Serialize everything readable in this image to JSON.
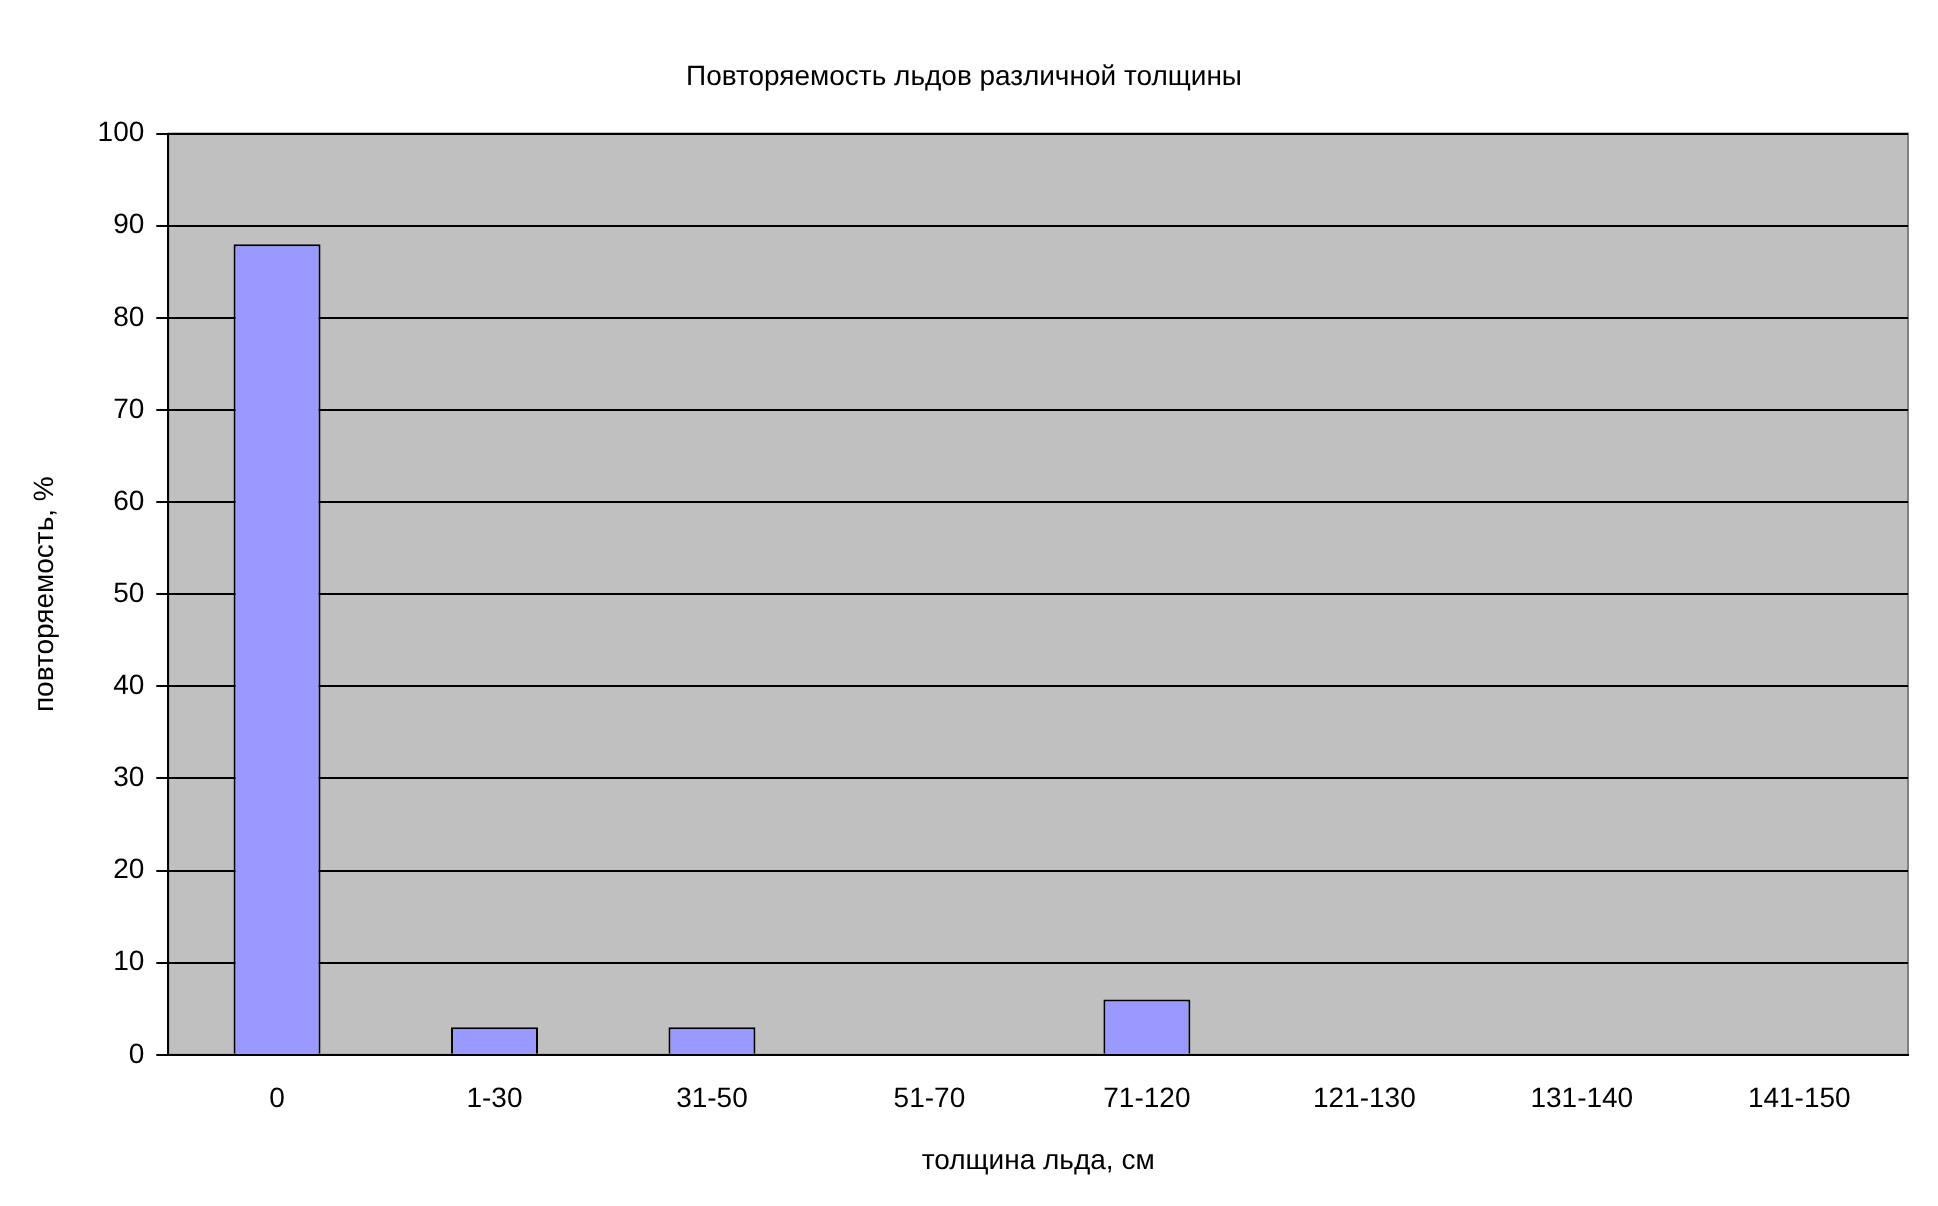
{
  "chart_data": {
    "type": "bar",
    "title": "Повторяемость льдов различной толщины",
    "xlabel": "толщина льда, см",
    "ylabel": "повторяемость, %",
    "categories": [
      "0",
      "1-30",
      "31-50",
      "51-70",
      "71-120",
      "121-130",
      "131-140",
      "141-150"
    ],
    "values": [
      88,
      3,
      3,
      0,
      6,
      0,
      0,
      0
    ],
    "color": "#9999ff",
    "ylim": [
      0,
      100
    ],
    "yticks": [
      0,
      10,
      20,
      30,
      40,
      50,
      60,
      70,
      80,
      90,
      100
    ],
    "grid": "y",
    "legend": false
  }
}
